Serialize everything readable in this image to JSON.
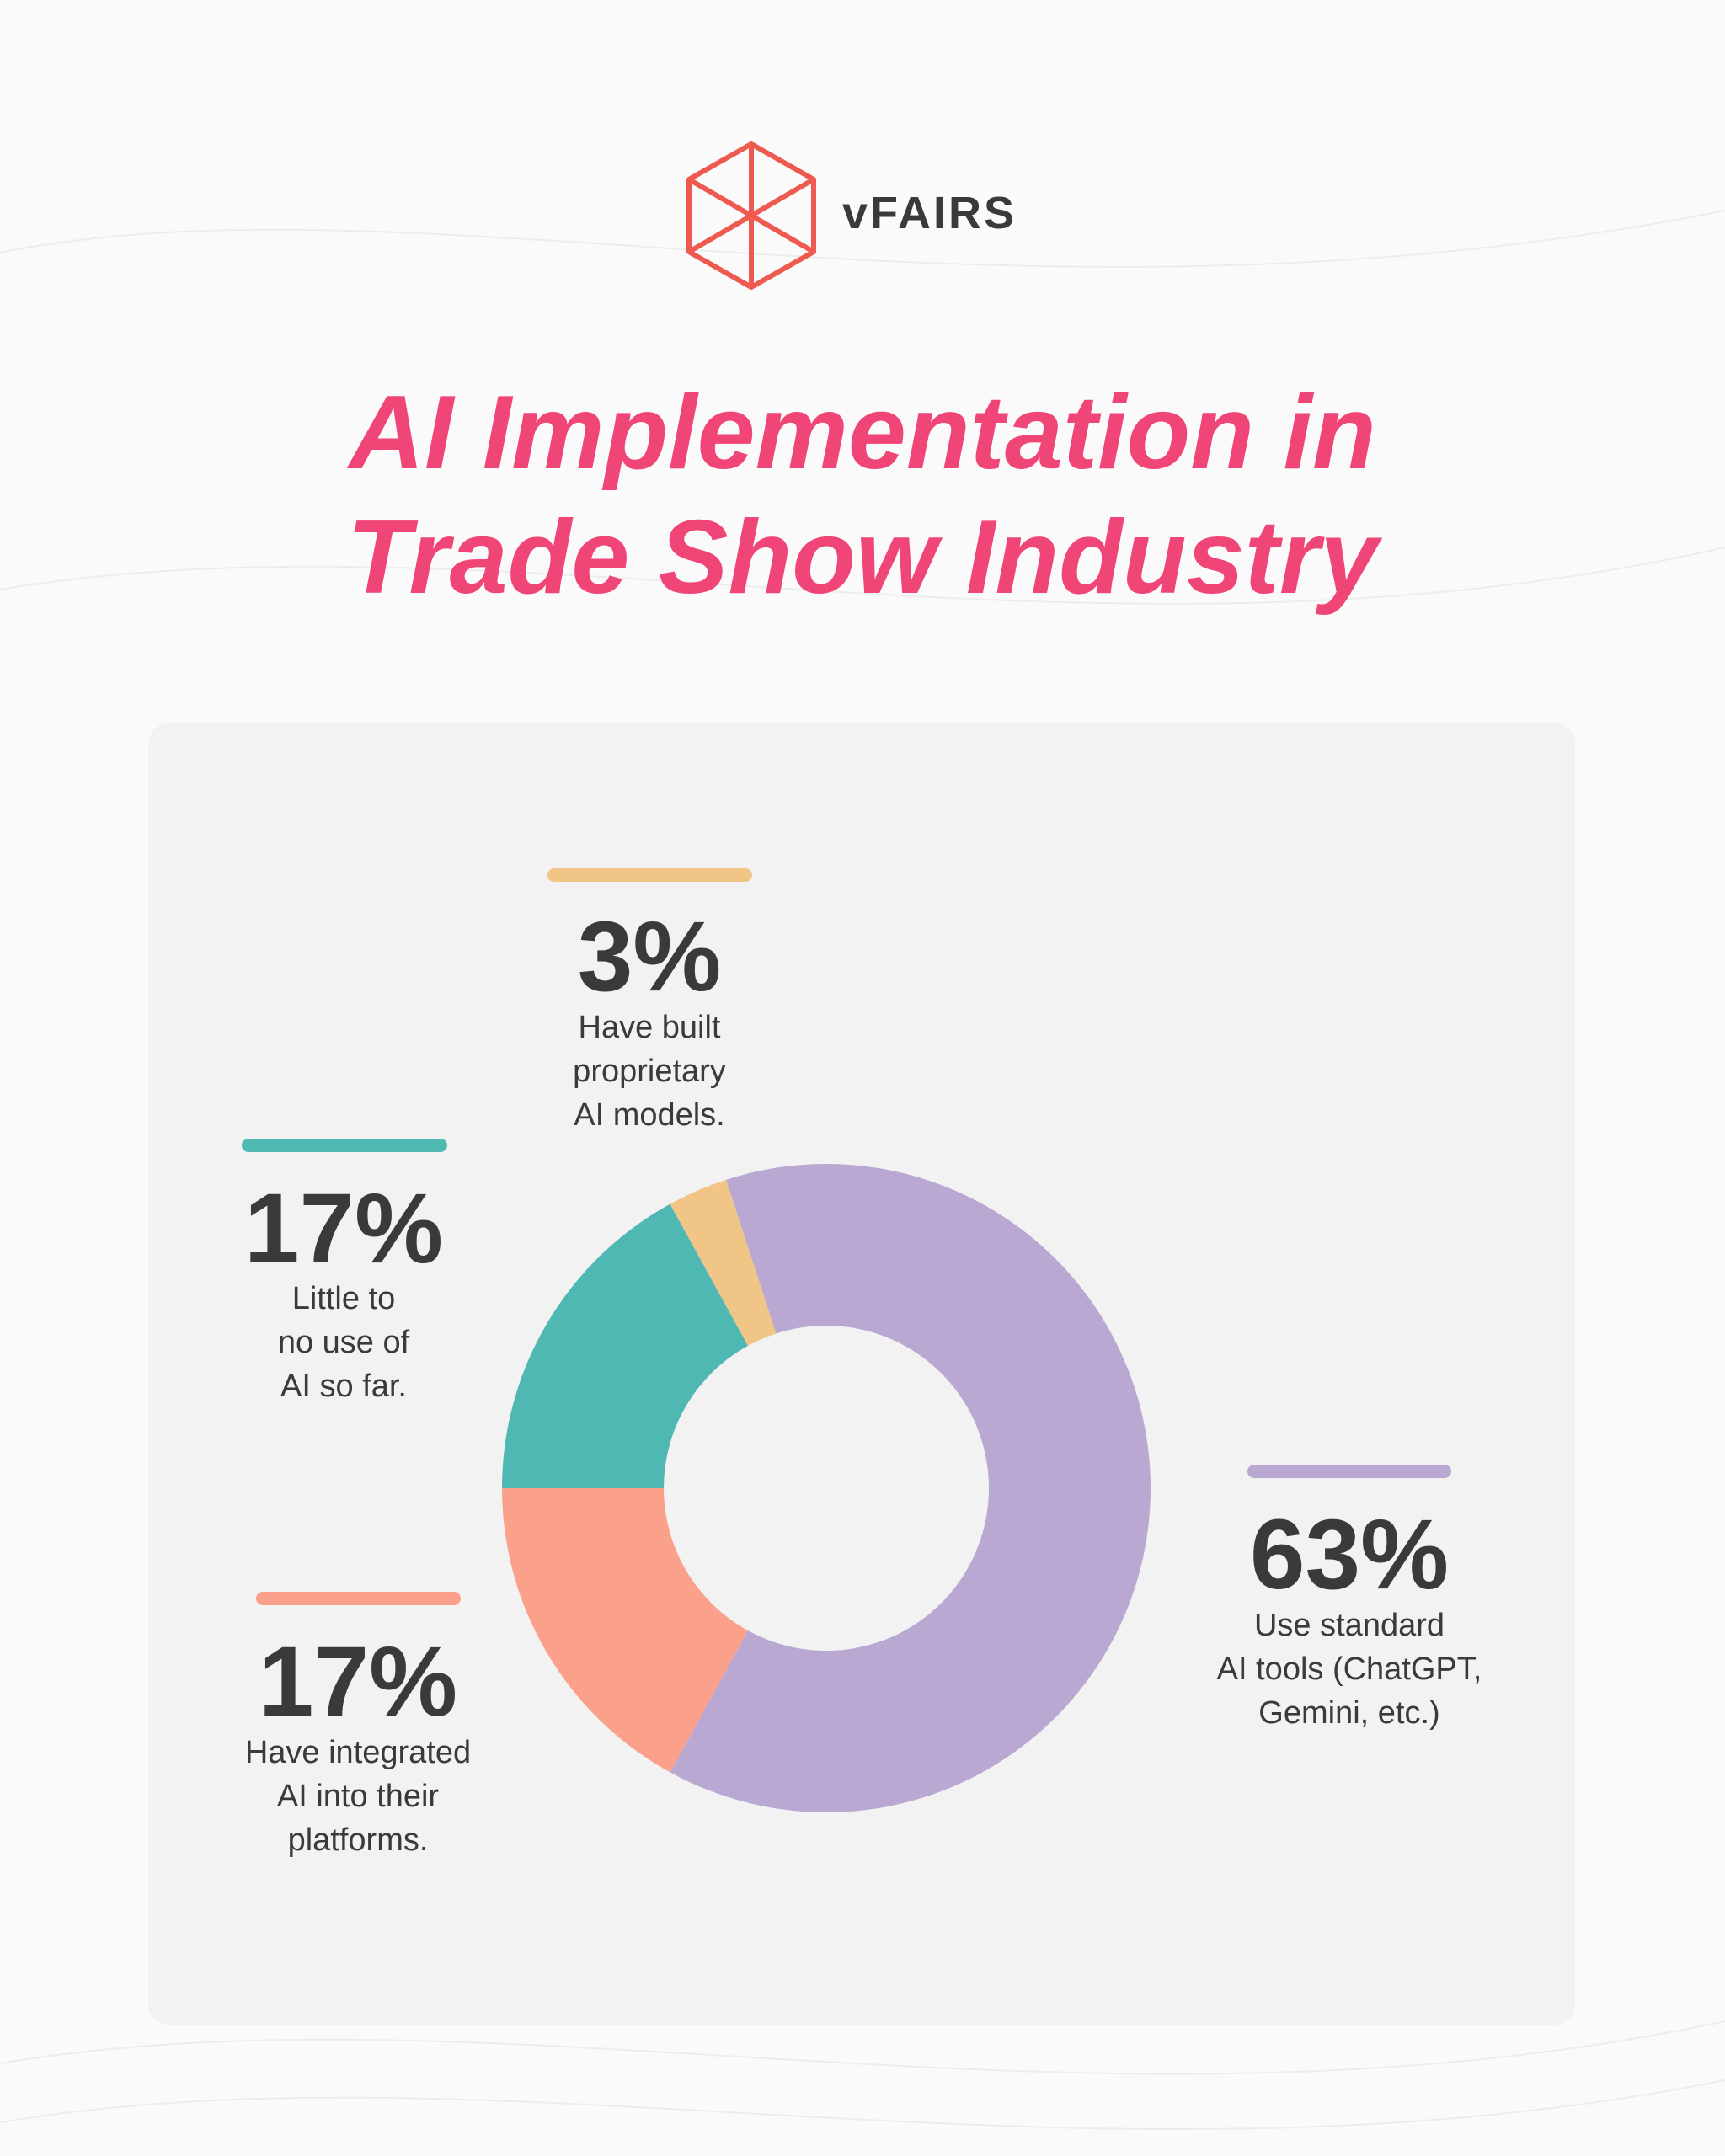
{
  "logo_text": "vFAIRS",
  "chart_data": {
    "type": "pie",
    "title": "AI Implementation in\nTrade Show Industry",
    "categories": [
      "Use standard\nAI tools (ChatGPT,\nGemini, etc.)",
      "Have integrated\nAI into their\nplatforms.",
      "Little to\nno use of\nAI so far.",
      "Have built\nproprietary\nAI models."
    ],
    "values": [
      63,
      17,
      17,
      3
    ],
    "value_labels": [
      "63%",
      "17%",
      "17%",
      "3%"
    ],
    "colors": [
      "#b9a8d2",
      "#fba08b",
      "#4fb8b2",
      "#f0c585"
    ],
    "donut": true
  }
}
